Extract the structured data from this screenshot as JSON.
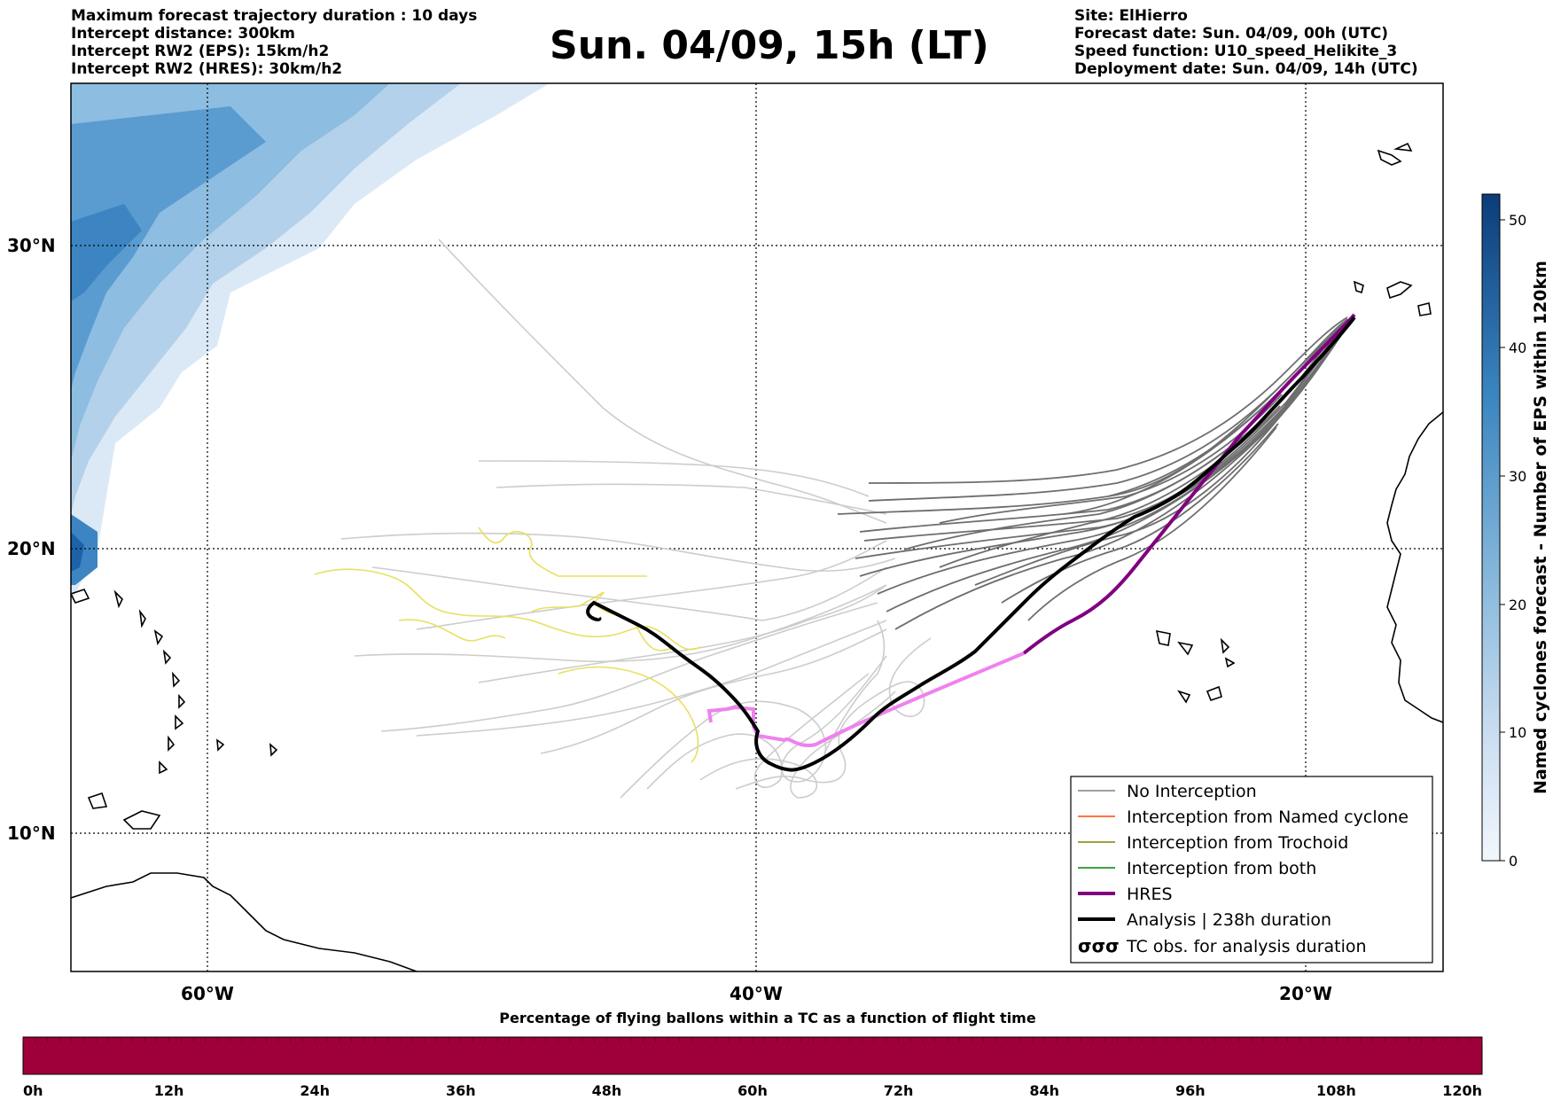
{
  "header_left": [
    "Maximum forecast trajectory duration : 10 days",
    "Intercept distance: 300km",
    "Intercept RW2 (EPS):  15km/h2",
    "Intercept RW2 (HRES): 30km/h2"
  ],
  "title": "Sun. 04/09, 15h (LT)",
  "header_right": [
    "Site: ElHierro",
    "Forecast date: Sun. 04/09, 00h (UTC)",
    "Speed function: U10_speed_Helikite_3",
    "Deployment date: Sun. 04/09, 14h (UTC)"
  ],
  "map": {
    "lat_labels": [
      "30°N",
      "20°N",
      "10°N"
    ],
    "lon_labels": [
      "60°W",
      "40°W",
      "20°W"
    ],
    "colors": {
      "no_interception": "#808080",
      "named_cyclone": "#ff4500",
      "trochoid": "#808000",
      "both": "#008000",
      "hres": "#800080",
      "hres_late": "#ee82ee",
      "analysis": "#000000",
      "eps_light": "#cccccc",
      "eps_yellow": "#e8e060"
    }
  },
  "legend": {
    "items": [
      {
        "label": "No Interception",
        "style": "thin-gray"
      },
      {
        "label": "Interception from Named cyclone",
        "style": "thin-orange"
      },
      {
        "label": "Interception from Trochoid",
        "style": "thin-olive"
      },
      {
        "label": "Interception from both",
        "style": "thin-green"
      },
      {
        "label": "HRES",
        "style": "thick-purple"
      },
      {
        "label": "Analysis | 238h duration",
        "style": "thick-black"
      },
      {
        "label": "TC obs. for analysis duration",
        "style": "tc-symbols"
      }
    ],
    "tc_symbol": "σσσ"
  },
  "colorbar_right": {
    "label": "Named cyclones forecast - Number of EPS within 120km",
    "ticks": [
      "0",
      "10",
      "20",
      "30",
      "40",
      "50"
    ],
    "min": 0,
    "max": 52
  },
  "time_bar": {
    "title": "Percentage of flying ballons within a TC as a function of flight time",
    "ticks": [
      "0h",
      "12h",
      "24h",
      "36h",
      "48h",
      "60h",
      "72h",
      "84h",
      "96h",
      "108h",
      "120h"
    ],
    "fill_color": "#a0003a"
  }
}
